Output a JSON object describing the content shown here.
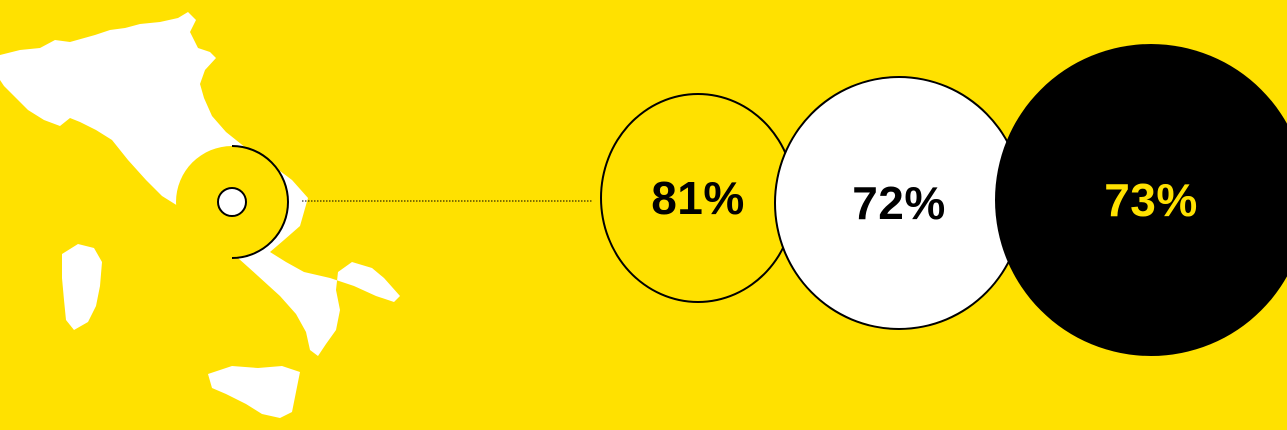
{
  "colors": {
    "background": "#FFE100",
    "map": "#FFFFFF",
    "ink": "#000000"
  },
  "map": {
    "icon": "italy-map",
    "marker_icon": "location-marker"
  },
  "stats": [
    {
      "value": "81%",
      "fill": "transparent",
      "text_color": "#000000"
    },
    {
      "value": "72%",
      "fill": "#FFFFFF",
      "text_color": "#000000"
    },
    {
      "value": "73%",
      "fill": "#000000",
      "text_color": "#FFE100"
    }
  ]
}
